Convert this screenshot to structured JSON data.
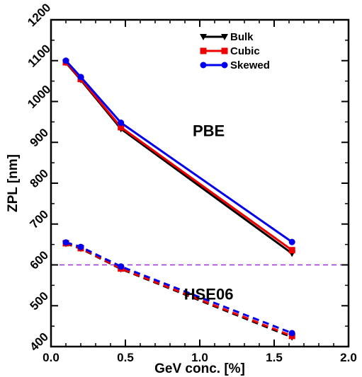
{
  "chart_data": {
    "type": "line",
    "xlabel": "GeV conc. [%]",
    "ylabel": "ZPL [nm]",
    "xlim": [
      0,
      2
    ],
    "ylim": [
      400,
      1200
    ],
    "xticks": [
      "0.0",
      "0.5",
      "1.0",
      "1.5",
      "2.0"
    ],
    "yticks": [
      "400",
      "500",
      "600",
      "700",
      "800",
      "900",
      "1000",
      "1100",
      "1200"
    ],
    "legend": {
      "position": "top-right",
      "entries": [
        "Bulk",
        "Cubic",
        "Skewed"
      ]
    },
    "annotations": [
      "PBE",
      "HSE06"
    ],
    "reference_line": {
      "y": 600,
      "style": "dashed",
      "color": "#9b30d9"
    },
    "x": [
      0.1,
      0.2,
      0.47,
      1.62
    ],
    "series": [
      {
        "name": "Bulk",
        "method": "PBE",
        "color": "#000000",
        "marker": "triangle-down",
        "line": "solid",
        "values": [
          1095,
          1053,
          933,
          628
        ]
      },
      {
        "name": "Cubic",
        "method": "PBE",
        "color": "#ee0000",
        "marker": "square",
        "line": "solid",
        "values": [
          1096,
          1055,
          937,
          636
        ]
      },
      {
        "name": "Skewed",
        "method": "PBE",
        "color": "#0000ee",
        "marker": "circle",
        "line": "solid",
        "values": [
          1100,
          1060,
          948,
          656
        ]
      },
      {
        "name": "Bulk",
        "method": "HSE06",
        "color": "#000000",
        "marker": "triangle-down",
        "line": "dashed",
        "values": [
          652,
          640,
          590,
          423
        ]
      },
      {
        "name": "Cubic",
        "method": "HSE06",
        "color": "#ee0000",
        "marker": "square",
        "line": "dashed",
        "values": [
          653,
          641,
          591,
          426
        ]
      },
      {
        "name": "Skewed",
        "method": "HSE06",
        "color": "#0000ee",
        "marker": "circle",
        "line": "dashed",
        "values": [
          655,
          644,
          596,
          433
        ]
      }
    ]
  }
}
